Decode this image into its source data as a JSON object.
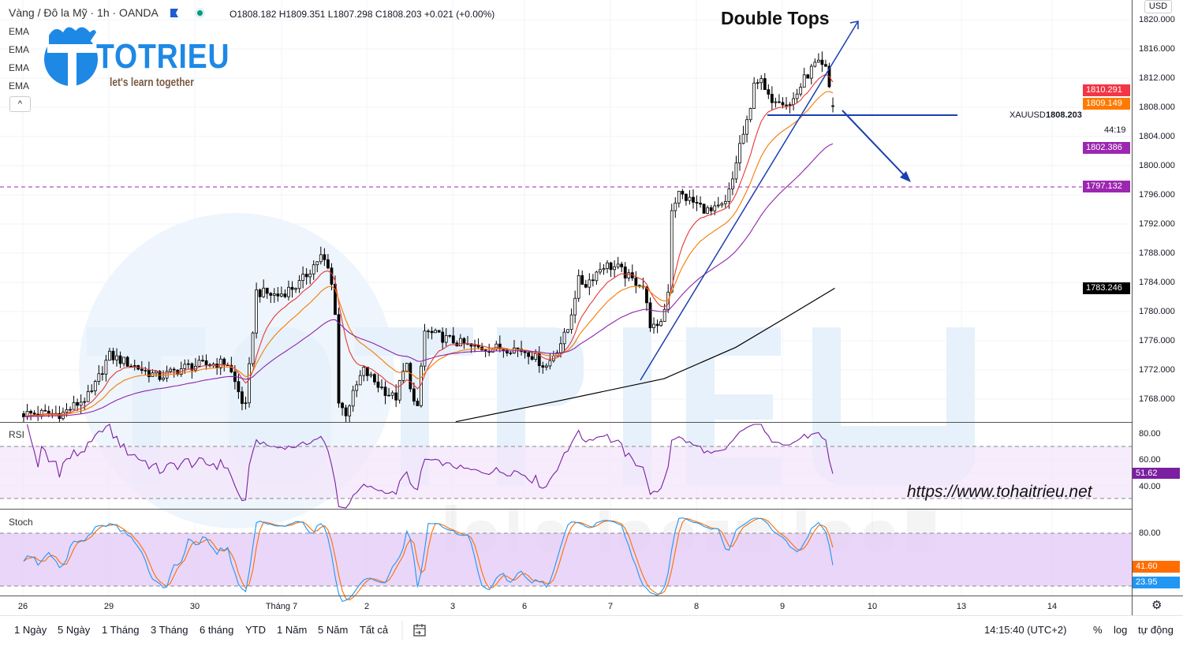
{
  "header": {
    "symbol_title": "Vàng / Đô la Mỹ · 1h · OANDA",
    "ohlc": "O1808.182  H1809.351  L1807.298  C1808.203  +0.021 (+0.00%)",
    "indicators": [
      "EMA",
      "EMA",
      "EMA",
      "EMA"
    ],
    "collapse_label": "^"
  },
  "logo": {
    "name": "TOTRIEU",
    "tagline": "let's learn together"
  },
  "watermark": {
    "big": "TOTRIEU",
    "sub": "let's learn together",
    "url": "https://www.tohaitrieu.net"
  },
  "colors": {
    "ema_fast": "#e53935",
    "ema_mid": "#f57c00",
    "ema_slow": "#8e24aa",
    "ema_long": "#000000",
    "drawing": "#1a3fb0",
    "rsi": "#7b1fa2",
    "stoch_k": "#2196f3",
    "stoch_d": "#ff6d00"
  },
  "price_axis": {
    "currency": "USD",
    "ticks": [
      "1820.000",
      "1816.000",
      "1812.000",
      "1808.000",
      "1804.000",
      "1800.000",
      "1796.000",
      "1792.000",
      "1788.000",
      "1784.000",
      "1780.000",
      "1776.000",
      "1772.000",
      "1768.000"
    ],
    "symbol": "XAUUSD",
    "last_price": "1808.203",
    "countdown": "44:19",
    "badges": [
      {
        "value": "1810.291",
        "color": "#f23645"
      },
      {
        "value": "1809.149",
        "color": "#ff7a00"
      },
      {
        "value": "1802.386",
        "color": "#9c27b0"
      },
      {
        "value": "1797.132",
        "color": "#9c27b0"
      },
      {
        "value": "1783.246",
        "color": "#000000"
      }
    ]
  },
  "rsi": {
    "label": "RSI",
    "ticks": [
      "80.00",
      "60.00",
      "40.00"
    ],
    "value": "51.62",
    "bands": [
      70,
      30
    ]
  },
  "stoch": {
    "label": "Stoch",
    "ticks": [
      "80.00"
    ],
    "k_value": "23.95",
    "d_value": "41.60",
    "bands": [
      80,
      20
    ]
  },
  "time_axis": {
    "ticks": [
      "26",
      "29",
      "30",
      "Tháng 7",
      "2",
      "3",
      "6",
      "7",
      "8",
      "9",
      "10",
      "13",
      "14"
    ]
  },
  "annotations": {
    "pattern_title": "Double Tops",
    "level": 1797.132,
    "neckline": 1808.2
  },
  "toolbar": {
    "ranges": [
      "1 Ngày",
      "5 Ngày",
      "1 Tháng",
      "3 Tháng",
      "6 tháng",
      "YTD",
      "1 Năm",
      "5 Năm",
      "Tất cả"
    ],
    "clock": "14:15:40 (UTC+2)",
    "percent": "%",
    "log": "log",
    "auto": "tự động"
  },
  "chart_data": {
    "type": "candlestick",
    "title": "Vàng / Đô la Mỹ · 1h · OANDA",
    "ylim": [
      1765,
      1821
    ],
    "grid": true,
    "close_path": [
      [
        "06-26 00:00",
        1766
      ],
      [
        "06-26 11:00",
        1766
      ],
      [
        "06-26 19:00",
        1768.6
      ],
      [
        "06-29 00:00",
        1774
      ],
      [
        "06-29 05:00",
        1773
      ],
      [
        "06-29 14:00",
        1771
      ],
      [
        "06-29 22:00",
        1772.5
      ],
      [
        "06-30 09:00",
        1773
      ],
      [
        "06-30 14:00",
        1766.5
      ],
      [
        "06-30 17:00",
        1782.7
      ],
      [
        "06-30 23:00",
        1782.2
      ],
      [
        "07-01 05:00",
        1783.8
      ],
      [
        "07-01 11:00",
        1787.6
      ],
      [
        "07-01 13:00",
        1786
      ],
      [
        "07-01 15:00",
        1781.6
      ],
      [
        "07-01 16:00",
        1767.6
      ],
      [
        "07-01 18:00",
        1766
      ],
      [
        "07-01 23:00",
        1772
      ],
      [
        "07-02 03:00",
        1770
      ],
      [
        "07-02 08:00",
        1768
      ],
      [
        "07-02 11:00",
        1773
      ],
      [
        "07-02 14:00",
        1765.4
      ],
      [
        "07-02 16:00",
        1777.3
      ],
      [
        "07-02 19:00",
        1776.8
      ],
      [
        "07-03 07:00",
        1775
      ],
      [
        "07-03 20:00",
        1775
      ],
      [
        "07-06 01:00",
        1774.5
      ],
      [
        "07-06 06:00",
        1772.4
      ],
      [
        "07-06 08:00",
        1774
      ],
      [
        "07-06 12:00",
        1777.3
      ],
      [
        "07-06 15:00",
        1784.3
      ],
      [
        "07-06 17:00",
        1783.7
      ],
      [
        "07-06 22:00",
        1786.4
      ],
      [
        "07-07 02:00",
        1786
      ],
      [
        "07-07 06:00",
        1784.3
      ],
      [
        "07-07 09:00",
        1783.8
      ],
      [
        "07-07 11:00",
        1778.4
      ],
      [
        "07-07 13:00",
        1777.3
      ],
      [
        "07-07 16:00",
        1781.6
      ],
      [
        "07-07 17:00",
        1794
      ],
      [
        "07-07 19:00",
        1796.2
      ],
      [
        "07-07 23:00",
        1795
      ],
      [
        "07-08 04:00",
        1793.6
      ],
      [
        "07-08 08:00",
        1794.6
      ],
      [
        "07-08 10:00",
        1797.8
      ],
      [
        "07-08 12:00",
        1802.7
      ],
      [
        "07-08 15:00",
        1807
      ],
      [
        "07-08 16:00",
        1811.9
      ],
      [
        "07-08 18:00",
        1811.5
      ],
      [
        "07-08 20:00",
        1809.2
      ],
      [
        "07-08 23:00",
        1809.3
      ],
      [
        "07-09 02:00",
        1808.3
      ],
      [
        "07-09 04:00",
        1810
      ],
      [
        "07-09 06:00",
        1812
      ],
      [
        "07-09 09:00",
        1814
      ],
      [
        "07-09 12:00",
        1813
      ],
      [
        "07-09 13:00",
        1808.6
      ],
      [
        "07-09 14:00",
        1808.2
      ]
    ],
    "ema_long_path": [
      [
        "07-03 01:00",
        1764.9
      ],
      [
        "07-06 08:00",
        1767.6
      ],
      [
        "07-07 15:00",
        1770.8
      ],
      [
        "07-08 11:00",
        1775.1
      ],
      [
        "07-09 02:00",
        1779.5
      ],
      [
        "07-09 14:00",
        1783.2
      ]
    ],
    "last": {
      "open": 1808.182,
      "high": 1809.351,
      "low": 1807.298,
      "close": 1808.203
    },
    "ema_last": [
      1810.291,
      1809.149,
      1802.386,
      1783.246
    ]
  }
}
